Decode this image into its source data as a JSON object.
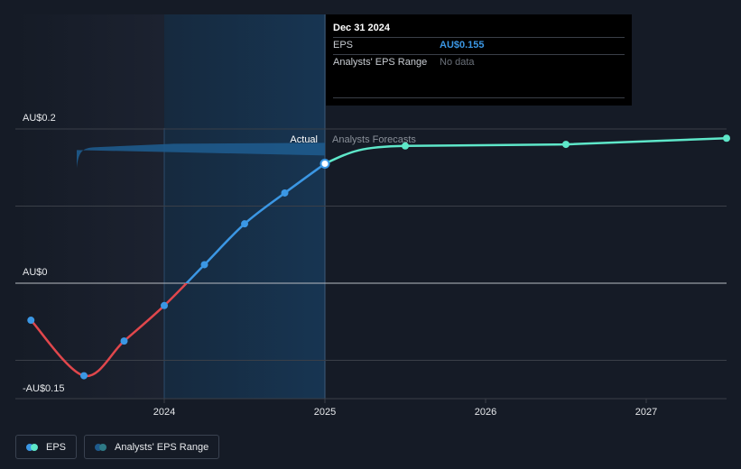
{
  "chart_data": {
    "type": "line",
    "title": "",
    "xlabel": "",
    "ylabel": "",
    "ylim": [
      -0.15,
      0.2
    ],
    "xlim": [
      2023.0,
      2027.5
    ],
    "y_ticks": [
      {
        "value": 0.2,
        "label": "AU$0.2"
      },
      {
        "value": 0.0,
        "label": "AU$0"
      },
      {
        "value": -0.15,
        "label": "-AU$0.15"
      }
    ],
    "y_gridlines": [
      0.2,
      0.1,
      0.0,
      -0.1
    ],
    "x_ticks": [
      {
        "value": 2024,
        "label": "2024"
      },
      {
        "value": 2025,
        "label": "2025"
      },
      {
        "value": 2026,
        "label": "2026"
      },
      {
        "value": 2027,
        "label": "2027"
      }
    ],
    "region_labels": {
      "actual": "Actual",
      "forecast": "Analysts Forecasts"
    },
    "divider_x": 2025.0,
    "highlight_start": 2024.0,
    "series": [
      {
        "name": "EPS (Actual)",
        "color_negative": "#e0474c",
        "color_positive": "#3b97e4",
        "points": [
          {
            "x": 2023.17,
            "y": -0.048
          },
          {
            "x": 2023.5,
            "y": -0.12
          },
          {
            "x": 2023.75,
            "y": -0.075
          },
          {
            "x": 2024.0,
            "y": -0.029
          },
          {
            "x": 2024.25,
            "y": 0.024
          },
          {
            "x": 2024.5,
            "y": 0.077
          },
          {
            "x": 2024.75,
            "y": 0.117
          },
          {
            "x": 2025.0,
            "y": 0.155
          }
        ]
      },
      {
        "name": "EPS (Analysts Forecasts)",
        "color": "#5ee7c9",
        "points": [
          {
            "x": 2025.0,
            "y": 0.155
          },
          {
            "x": 2025.5,
            "y": 0.178
          },
          {
            "x": 2026.5,
            "y": 0.18
          },
          {
            "x": 2027.5,
            "y": 0.188
          }
        ]
      }
    ],
    "range_band": {
      "from_x": 2023.5,
      "to_x": 2025.0,
      "y": 0.175,
      "color": "#1e5a8c"
    },
    "tooltip": {
      "date": "Dec 31 2024",
      "rows": [
        {
          "key": "EPS",
          "value": "AU$0.155"
        },
        {
          "key": "Analysts' EPS Range",
          "value": "No data"
        }
      ]
    },
    "legend": [
      {
        "label": "EPS",
        "color1": "#3b97e4",
        "color2": "#5ee7c9"
      },
      {
        "label": "Analysts' EPS Range",
        "color1": "#1e5a8c",
        "color2": "#2e7a86"
      }
    ]
  }
}
